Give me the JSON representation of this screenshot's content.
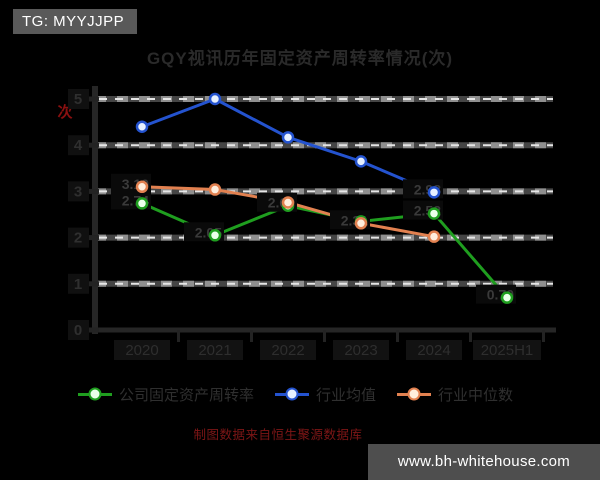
{
  "window": {
    "tg_badge": "TG: MYYJJPP",
    "watermark": "www.bh-whitehouse.com"
  },
  "colors": {
    "background": "#000000",
    "badge_bg": "#595959",
    "watermark_bg": "#4e4e4e",
    "grid": "#8f8f8f",
    "axis": "#262626",
    "title_text": "#2a2a2a",
    "caption_text": "#7e1616",
    "unit_text": "#8b1010"
  },
  "chart_data": {
    "type": "line",
    "title": "GQY视讯历年固定资产周转率情况(次)",
    "y_axis_unit_label": "次",
    "source_note": "制图数据来自恒生聚源数据库",
    "categories": [
      "2020",
      "2021",
      "2022",
      "2023",
      "2024",
      "2025H1"
    ],
    "yticks": [
      0,
      1,
      2,
      3,
      4,
      5
    ],
    "ylim": [
      0,
      5.3
    ],
    "grid": "horizontal-dashed-white",
    "legend_position": "bottom",
    "series": [
      {
        "name": "公司固定资产周转率",
        "color": "#1f9e1f",
        "marker_fill": "#eaffea",
        "values": [
          2.74,
          2.05,
          2.69,
          2.35,
          2.52,
          0.7
        ],
        "point_labels": [
          "2.74",
          "2.05",
          "2.69",
          null,
          "2.52",
          "0.70"
        ]
      },
      {
        "name": "行业均值",
        "color": "#2453cf",
        "marker_fill": "#e6f0ff",
        "values": [
          4.4,
          5.0,
          4.17,
          3.65,
          2.98,
          null
        ],
        "point_labels": [
          null,
          null,
          null,
          null,
          "2.98",
          null
        ]
      },
      {
        "name": "行业中位数",
        "color": "#e28150",
        "marker_fill": "#ffeedd",
        "values": [
          3.1,
          3.04,
          2.76,
          2.31,
          2.02,
          null
        ],
        "point_labels": [
          "3.10",
          null,
          null,
          "2.31",
          null,
          null
        ]
      }
    ]
  }
}
